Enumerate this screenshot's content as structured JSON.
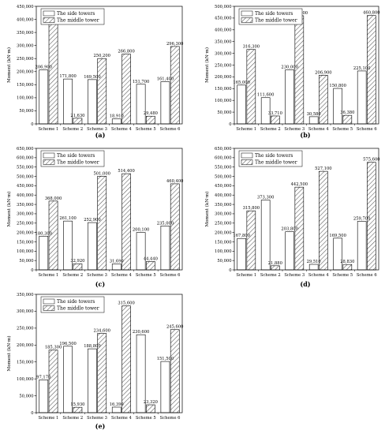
{
  "figure": {
    "colors": {
      "axis": "#000000",
      "side_fill": "#ffffff",
      "middle_fill": "#ffffff",
      "hatch": "#555555"
    }
  },
  "chart_data": [
    {
      "panel": "(a)",
      "type": "bar",
      "categories": [
        "Scheme 1",
        "Scheme 2",
        "Scheme 3",
        "Scheme 4",
        "Scheme 5",
        "Scheme 6"
      ],
      "series": [
        {
          "name": "The side towers",
          "values": [
            206900,
            171800,
            169500,
            18910,
            151700,
            161400
          ],
          "labels": [
            "206,900",
            "171,800",
            "169,500",
            "18,910",
            "151,700",
            "161,400"
          ]
        },
        {
          "name": "The middle tower",
          "values": [
            395400,
            21630,
            250200,
            266800,
            29480,
            296300
          ],
          "labels": [
            "395,400",
            "21,630",
            "250,200",
            "266,800",
            "29,480",
            "296,300"
          ]
        }
      ],
      "ylabel": "Moment (kN·m)",
      "ylim": [
        0,
        450000
      ],
      "yticks": [
        0,
        50000,
        100000,
        150000,
        200000,
        250000,
        300000,
        350000,
        400000,
        450000
      ],
      "ytick_labels": [
        "0",
        "50,000",
        "100,000",
        "150,000",
        "200,000",
        "250,000",
        "300,000",
        "350,000",
        "400,000",
        "450,000"
      ],
      "legend": "top-left",
      "grid": false
    },
    {
      "panel": "(b)",
      "type": "bar",
      "categories": [
        "Scheme 1",
        "Scheme 2",
        "Scheme 3",
        "Scheme 4",
        "Scheme 5",
        "Scheme 6"
      ],
      "series": [
        {
          "name": "The side towers",
          "values": [
            165000,
            111600,
            230000,
            30580,
            150800,
            225100
          ],
          "labels": [
            "165,000",
            "111,600",
            "230,000",
            "30,580",
            "150,800",
            "225,100"
          ]
        },
        {
          "name": "The middle tower",
          "values": [
            316300,
            33710,
            459900,
            206900,
            36380,
            460800
          ],
          "labels": [
            "316,300",
            "33,710",
            "459,900",
            "206,900",
            "36,380",
            "460,800"
          ]
        }
      ],
      "ylabel": "Moment (kN·m)",
      "ylim": [
        0,
        500000
      ],
      "yticks": [
        0,
        50000,
        100000,
        150000,
        200000,
        250000,
        300000,
        350000,
        400000,
        450000,
        500000
      ],
      "ytick_labels": [
        "0",
        "50,000",
        "100,000",
        "150,000",
        "200,000",
        "250,000",
        "300,000",
        "350,000",
        "400,000",
        "450,000",
        "500,000"
      ],
      "legend": "top-left",
      "grid": false
    },
    {
      "panel": "(c)",
      "type": "bar",
      "categories": [
        "Scheme 1",
        "Scheme 2",
        "Scheme 3",
        "Scheme 4",
        "Scheme 5",
        "Scheme 6"
      ],
      "series": [
        {
          "name": "The side towers",
          "values": [
            180300,
            261100,
            252900,
            31690,
            200100,
            235000
          ],
          "labels": [
            "180,300",
            "261,100",
            "252,900",
            "31,690",
            "200,100",
            "235,000"
          ]
        },
        {
          "name": "The middle tower",
          "values": [
            368000,
            32920,
            501000,
            514400,
            44440,
            460400
          ],
          "labels": [
            "368,000",
            "32,920",
            "501,000",
            "514,400",
            "44,440",
            "460,400"
          ]
        }
      ],
      "ylabel": "Moment (kN·m)",
      "ylim": [
        0,
        650000
      ],
      "yticks": [
        0,
        50000,
        100000,
        150000,
        200000,
        250000,
        300000,
        350000,
        400000,
        450000,
        500000,
        550000,
        600000,
        650000
      ],
      "ytick_labels": [
        "0",
        "50,000",
        "100,000",
        "150,000",
        "200,000",
        "250,000",
        "300,000",
        "350,000",
        "400,000",
        "450,000",
        "500,000",
        "550,000",
        "600,000",
        "650,000"
      ],
      "legend": "top-left",
      "grid": false
    },
    {
      "panel": "(d)",
      "type": "bar",
      "categories": [
        "Scheme 1",
        "Scheme 2",
        "Scheme 3",
        "Scheme 4",
        "Scheme 5",
        "Scheme 6"
      ],
      "series": [
        {
          "name": "The side towers",
          "values": [
            167800,
            373300,
            203800,
            29510,
            169500,
            259700
          ],
          "labels": [
            "167,800",
            "373,300",
            "203,800",
            "29,510",
            "169,500",
            "259,700"
          ]
        },
        {
          "name": "The middle tower",
          "values": [
            315800,
            21880,
            442500,
            527100,
            28830,
            575600
          ],
          "labels": [
            "315,800",
            "21,880",
            "442,500",
            "527,100",
            "28,830",
            "575,600"
          ]
        }
      ],
      "ylabel": "Moment (kN·m)",
      "ylim": [
        0,
        650000
      ],
      "yticks": [
        0,
        50000,
        100000,
        150000,
        200000,
        250000,
        300000,
        350000,
        400000,
        450000,
        500000,
        550000,
        600000,
        650000
      ],
      "ytick_labels": [
        "0",
        "50,000",
        "100,000",
        "150,000",
        "200,000",
        "250,000",
        "300,000",
        "350,000",
        "400,000",
        "450,000",
        "500,000",
        "550,000",
        "600,000",
        "650,000"
      ],
      "legend": "top-left",
      "grid": false
    },
    {
      "panel": "(e)",
      "type": "bar",
      "categories": [
        "Scheme 1",
        "Scheme 2",
        "Scheme 3",
        "Scheme 4",
        "Scheme 5",
        "Scheme 6"
      ],
      "series": [
        {
          "name": "The side towers",
          "values": [
            97170,
            196500,
            188800,
            16390,
            230600,
            151500
          ],
          "labels": [
            "97,170",
            "196,500",
            "188,800",
            "16,390",
            "230,600",
            "151,500"
          ]
        },
        {
          "name": "The middle tower",
          "values": [
            185300,
            15930,
            234600,
            315600,
            23320,
            245600
          ],
          "labels": [
            "185,300",
            "15,930",
            "234,600",
            "315,600",
            "23,320",
            "245,600"
          ]
        }
      ],
      "ylabel": "Moment (kN·m)",
      "ylim": [
        0,
        350000
      ],
      "yticks": [
        0,
        50000,
        100000,
        150000,
        200000,
        250000,
        300000,
        350000
      ],
      "ytick_labels": [
        "0",
        "50,000",
        "100,000",
        "150,000",
        "200,000",
        "250,000",
        "300,000",
        "350,000"
      ],
      "legend": "top-left",
      "grid": false
    }
  ]
}
